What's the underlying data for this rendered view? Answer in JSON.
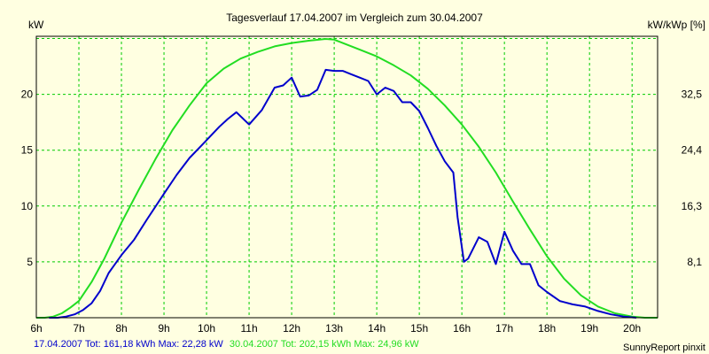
{
  "chart_data": {
    "type": "line",
    "title": "Tagesverlauf 17.04.2007 im Vergleich zum 30.04.2007",
    "ylabel": "kW",
    "ylabel_right": "kW/kWp [%]",
    "x_ticks": [
      "6h",
      "7h",
      "8h",
      "9h",
      "10h",
      "11h",
      "12h",
      "13h",
      "14h",
      "15h",
      "16h",
      "17h",
      "18h",
      "19h",
      "20h"
    ],
    "y_ticks": [
      "5",
      "10",
      "15",
      "20"
    ],
    "y_ticks_right": [
      "8,1",
      "16,3",
      "24,4",
      "32,5"
    ],
    "xlim": [
      6,
      20.6
    ],
    "ylim": [
      0,
      25.2
    ],
    "grid": true,
    "colors": {
      "background": "#ffffe1",
      "grid": "#00cc00",
      "series_a": "#0000cc",
      "series_b": "#22dd22"
    },
    "series": [
      {
        "name": "17.04.2007",
        "color": "#0000cc",
        "summary": "17.04.2007 Tot: 161,18 kWh Max: 22,28 kW",
        "x": [
          6.3,
          6.5,
          6.7,
          6.9,
          7.1,
          7.3,
          7.5,
          7.7,
          8.0,
          8.3,
          8.6,
          9.0,
          9.3,
          9.6,
          9.9,
          10.1,
          10.3,
          10.5,
          10.7,
          11.0,
          11.3,
          11.6,
          11.8,
          12.0,
          12.2,
          12.4,
          12.6,
          12.8,
          13.0,
          13.2,
          13.4,
          13.6,
          13.8,
          14.0,
          14.2,
          14.4,
          14.6,
          14.8,
          15.0,
          15.2,
          15.4,
          15.6,
          15.8,
          15.9,
          16.05,
          16.15,
          16.4,
          16.6,
          16.8,
          17.0,
          17.2,
          17.4,
          17.6,
          17.8,
          18.0,
          18.3,
          18.6,
          18.9,
          19.2,
          19.5,
          19.8,
          20.1
        ],
        "values": [
          0,
          0,
          0.1,
          0.3,
          0.7,
          1.3,
          2.4,
          4.0,
          5.6,
          7.0,
          8.8,
          11.1,
          12.8,
          14.3,
          15.5,
          16.3,
          17.1,
          17.8,
          18.4,
          17.3,
          18.6,
          20.6,
          20.8,
          21.5,
          19.8,
          19.9,
          20.4,
          22.2,
          22.1,
          22.1,
          21.8,
          21.5,
          21.2,
          20.0,
          20.6,
          20.3,
          19.3,
          19.3,
          18.5,
          17.0,
          15.4,
          14.0,
          13.0,
          9.0,
          5.0,
          5.3,
          7.2,
          6.8,
          4.8,
          7.7,
          6.0,
          4.8,
          4.8,
          2.9,
          2.3,
          1.5,
          1.2,
          1.0,
          0.6,
          0.3,
          0.1,
          0
        ]
      },
      {
        "name": "30.04.2007",
        "color": "#22dd22",
        "summary": "30.04.2007 Tot: 202,15 kWh Max: 24,96 kW",
        "x": [
          6.0,
          6.2,
          6.4,
          6.6,
          6.8,
          7.0,
          7.3,
          7.6,
          8.0,
          8.4,
          8.8,
          9.2,
          9.6,
          10.0,
          10.4,
          10.8,
          11.2,
          11.6,
          12.0,
          12.4,
          12.8,
          13.0,
          13.2,
          13.6,
          14.0,
          14.4,
          14.8,
          15.2,
          15.6,
          16.0,
          16.4,
          16.8,
          17.2,
          17.6,
          18.0,
          18.4,
          18.8,
          19.2,
          19.6,
          20.0,
          20.3,
          20.6
        ],
        "values": [
          0,
          0,
          0.1,
          0.4,
          0.9,
          1.5,
          3.2,
          5.3,
          8.5,
          11.4,
          14.2,
          16.8,
          19.0,
          21.0,
          22.3,
          23.2,
          23.8,
          24.3,
          24.6,
          24.8,
          24.96,
          24.9,
          24.6,
          24.0,
          23.4,
          22.6,
          21.7,
          20.5,
          19.0,
          17.3,
          15.3,
          13.0,
          10.4,
          7.9,
          5.5,
          3.5,
          2.0,
          1.0,
          0.4,
          0.1,
          0,
          0
        ]
      }
    ]
  },
  "footer": {
    "legend_a": "17.04.2007 Tot: 161,18 kWh Max: 22,28 kW",
    "legend_b": "30.04.2007 Tot: 202,15 kWh Max: 24,96 kW",
    "credit": "SunnyReport pinxit"
  }
}
